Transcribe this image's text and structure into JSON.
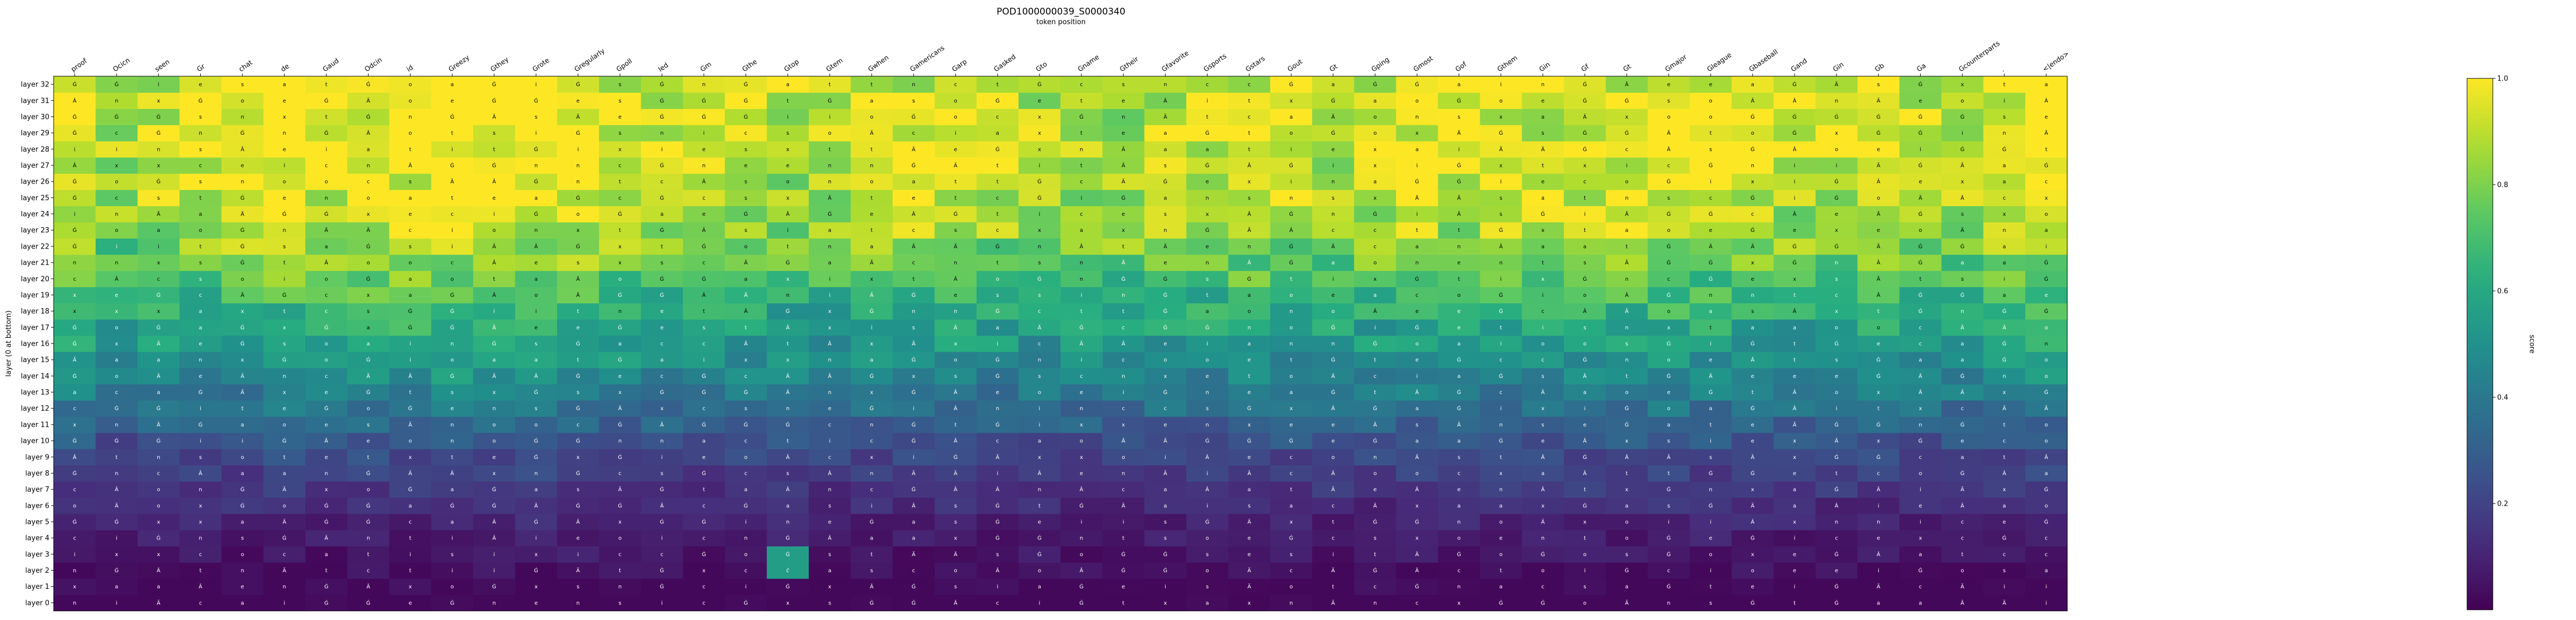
{
  "chart_data": {
    "type": "heatmap",
    "title": "POD1000000039_S0000340",
    "xlabel": "token position",
    "ylabel": "layer (0 at bottom)",
    "colorbar_label": "score",
    "colormap": "viridis",
    "vmin": 0.0,
    "vmax": 1.0,
    "colorbar_ticks": [
      "0.2",
      "0.4",
      "0.6",
      "0.8",
      "1.0"
    ],
    "colorbar_tick_values": [
      0.2,
      0.4,
      0.6,
      0.8,
      1.0
    ],
    "x_tokens": [
      "proof",
      "Ocicn",
      "seen",
      "Gr",
      "chat",
      "de",
      "Gaud",
      "Odcin",
      "id",
      "Greezy",
      "Gthey",
      "Grote",
      "Gregularly",
      "Gpoll",
      "led",
      "Gm",
      "Gthe",
      "Gtop",
      "Gtem",
      "Gwhen",
      "Gamericans",
      "Garp",
      "Gasked",
      "Gto",
      "Gname",
      "Gtheir",
      "Gfavorite",
      "Gsports",
      "Gstars",
      "Gout",
      "Gt",
      "Gping",
      "Gmost",
      "Gof",
      "Gthem",
      "Gin",
      "Gf",
      "Gt",
      "Gmajor",
      "Gleague",
      "Gbaseball",
      "Gand",
      "Gin",
      "Gb",
      "Ga",
      "Gcounterparts",
      ".",
      "<|endo>"
    ],
    "y_labels": [
      "layer 32",
      "layer 31",
      "layer 30",
      "layer 29",
      "layer 28",
      "layer 27",
      "layer 26",
      "layer 25",
      "layer 24",
      "layer 23",
      "layer 22",
      "layer 21",
      "layer 20",
      "layer 19",
      "layer 18",
      "layer 17",
      "layer 16",
      "layer 15",
      "layer 14",
      "layer 13",
      "layer 12",
      "layer 11",
      "layer 10",
      "layer 9",
      "layer 8",
      "layer 7",
      "layer 6",
      "layer 5",
      "layer 4",
      "layer 3",
      "layer 2",
      "layer 1",
      "layer 0"
    ],
    "layer_count": 33,
    "token_count": 48,
    "cell_glyphs": [
      "a",
      "Ġ",
      "Ġ",
      "x",
      "t",
      "Ä",
      "o",
      "n",
      "Â",
      "s",
      "c",
      "i",
      "e",
      "Ġ"
    ],
    "column_profile": [
      0.78,
      0.55,
      0.68,
      0.72,
      0.72,
      0.8,
      0.74,
      0.8,
      0.8,
      0.88,
      0.82,
      0.82,
      0.82,
      0.74,
      0.7,
      0.62,
      0.64,
      0.62,
      0.58,
      0.64,
      0.7,
      0.72,
      0.66,
      0.6,
      0.62,
      0.6,
      0.64,
      0.66,
      0.7,
      0.66,
      0.64,
      0.66,
      0.76,
      0.72,
      0.7,
      0.7,
      0.76,
      0.74,
      0.78,
      0.72,
      0.7,
      0.64,
      0.66,
      0.7,
      0.62,
      0.64,
      0.72,
      0.82
    ],
    "layer_profile": [
      0.0,
      0.02,
      0.04,
      0.06,
      0.08,
      0.1,
      0.13,
      0.16,
      0.19,
      0.22,
      0.27,
      0.32,
      0.38,
      0.42,
      0.47,
      0.51,
      0.56,
      0.6,
      0.64,
      0.68,
      0.74,
      0.8,
      0.85,
      0.88,
      0.91,
      0.93,
      0.95,
      0.96,
      0.97,
      0.97,
      0.98,
      0.98,
      0.96
    ],
    "special_cells": [
      {
        "layer": 3,
        "token": 17,
        "value": 0.55,
        "glyph": "Ġ"
      },
      {
        "layer": 2,
        "token": 17,
        "value": 0.55,
        "glyph": "ĉ"
      }
    ]
  }
}
